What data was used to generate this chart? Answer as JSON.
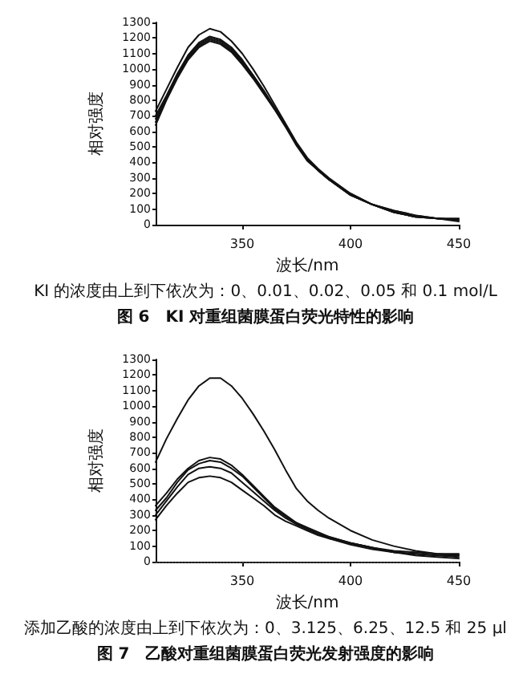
{
  "chart_data": [
    {
      "type": "line",
      "title": "图 6　KI 对重组菌膜蛋白荧光特性的影响",
      "xlabel": "波长/nm",
      "ylabel": "相对强度",
      "annotations": [
        "KI 的浓度由上到下依次为：0、0.01、0.02、0.05 和 0.1 mol/L"
      ],
      "x": [
        310,
        315,
        320,
        325,
        330,
        335,
        340,
        345,
        350,
        355,
        360,
        365,
        370,
        375,
        380,
        385,
        390,
        400,
        410,
        420,
        430,
        440,
        450
      ],
      "series": [
        {
          "color": "#111111",
          "values": [
            730,
            870,
            1010,
            1140,
            1220,
            1260,
            1240,
            1180,
            1100,
            1000,
            890,
            770,
            650,
            530,
            430,
            360,
            300,
            200,
            130,
            90,
            60,
            40,
            40
          ]
        },
        {
          "color": "#111111",
          "values": [
            700,
            830,
            970,
            1090,
            1170,
            1210,
            1190,
            1140,
            1060,
            960,
            860,
            750,
            640,
            520,
            420,
            350,
            290,
            200,
            130,
            90,
            60,
            40,
            30
          ]
        },
        {
          "color": "#111111",
          "values": [
            680,
            820,
            960,
            1080,
            1160,
            1200,
            1180,
            1130,
            1050,
            960,
            860,
            750,
            640,
            520,
            420,
            350,
            290,
            190,
            130,
            80,
            50,
            40,
            30
          ]
        },
        {
          "color": "#111111",
          "values": [
            660,
            810,
            950,
            1070,
            1150,
            1190,
            1170,
            1120,
            1040,
            950,
            850,
            740,
            630,
            520,
            420,
            350,
            290,
            190,
            130,
            80,
            50,
            40,
            30
          ]
        },
        {
          "color": "#111111",
          "values": [
            640,
            800,
            940,
            1060,
            1140,
            1180,
            1160,
            1110,
            1030,
            940,
            840,
            740,
            630,
            510,
            410,
            350,
            290,
            190,
            130,
            80,
            50,
            40,
            20
          ]
        }
      ],
      "xlim": [
        310,
        450
      ],
      "xticks": [
        350,
        400,
        450
      ],
      "ylim": [
        0,
        1300
      ],
      "yticks": [
        0,
        100,
        200,
        300,
        400,
        500,
        600,
        700,
        800,
        900,
        1000,
        1100,
        1200,
        1300
      ],
      "grid": false,
      "marker": "none",
      "line_style": "solid"
    },
    {
      "type": "line",
      "title": "图 7　乙酸对重组菌膜蛋白荧光发射强度的影响",
      "xlabel": "波长/nm",
      "ylabel": "相对强度",
      "annotations": [
        "添加乙酸的浓度由上到下依次为：0、3.125、6.25、12.5 和 25 μl"
      ],
      "x": [
        310,
        315,
        320,
        325,
        330,
        335,
        340,
        345,
        350,
        355,
        360,
        365,
        370,
        375,
        380,
        385,
        390,
        400,
        410,
        420,
        430,
        440,
        450
      ],
      "series": [
        {
          "color": "#111111",
          "values": [
            640,
            790,
            920,
            1040,
            1130,
            1180,
            1180,
            1130,
            1050,
            950,
            840,
            720,
            590,
            470,
            390,
            330,
            280,
            200,
            140,
            100,
            70,
            50,
            40
          ]
        },
        {
          "color": "#111111",
          "values": [
            360,
            440,
            530,
            600,
            650,
            670,
            660,
            620,
            560,
            490,
            420,
            350,
            300,
            250,
            220,
            190,
            160,
            120,
            90,
            70,
            60,
            50,
            50
          ]
        },
        {
          "color": "#111111",
          "values": [
            330,
            410,
            510,
            590,
            630,
            650,
            640,
            600,
            550,
            480,
            410,
            340,
            290,
            250,
            210,
            180,
            160,
            120,
            90,
            60,
            50,
            40,
            40
          ]
        },
        {
          "color": "#111111",
          "values": [
            300,
            390,
            480,
            560,
            600,
            610,
            600,
            570,
            510,
            450,
            390,
            330,
            280,
            240,
            210,
            180,
            150,
            120,
            90,
            60,
            50,
            40,
            30
          ]
        },
        {
          "color": "#111111",
          "values": [
            270,
            360,
            440,
            510,
            540,
            550,
            540,
            510,
            460,
            410,
            360,
            300,
            260,
            230,
            200,
            170,
            150,
            110,
            80,
            60,
            40,
            30,
            20
          ]
        }
      ],
      "ref_lines": [
        {
          "axis": "y",
          "value": 0,
          "line_style": "dotted",
          "color": "#333333"
        }
      ],
      "xlim": [
        310,
        450
      ],
      "xticks": [
        350,
        400,
        450
      ],
      "ylim": [
        0,
        1300
      ],
      "yticks": [
        0,
        100,
        200,
        300,
        400,
        500,
        600,
        700,
        800,
        900,
        1000,
        1100,
        1200,
        1300
      ],
      "grid": false,
      "marker": "none",
      "line_style": "solid"
    }
  ]
}
